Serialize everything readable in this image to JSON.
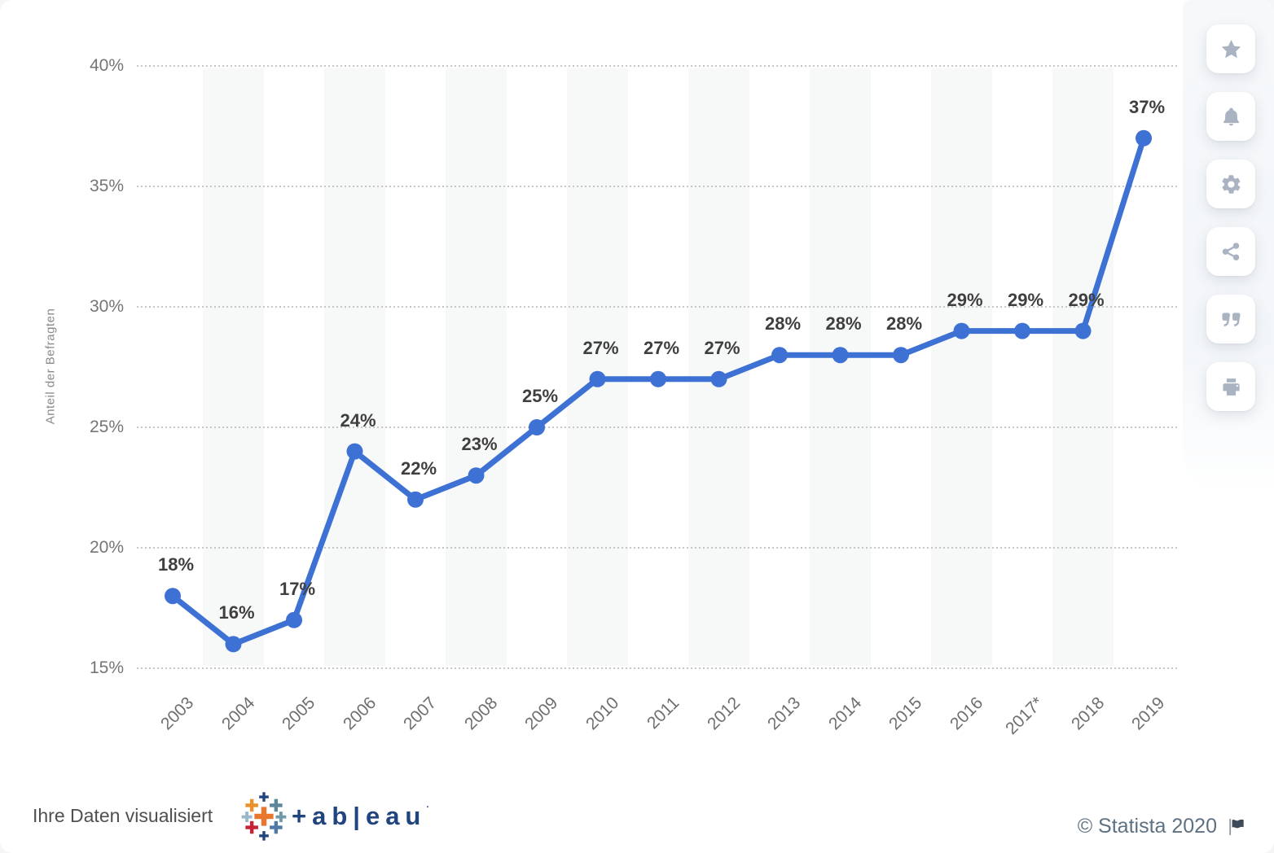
{
  "chart_data": {
    "type": "line",
    "categories": [
      "2003",
      "2004",
      "2005",
      "2006",
      "2007",
      "2008",
      "2009",
      "2010",
      "2011",
      "2012",
      "2013",
      "2014",
      "2015",
      "2016",
      "2017*",
      "2018",
      "2019"
    ],
    "values": [
      18,
      16,
      17,
      24,
      22,
      23,
      25,
      27,
      27,
      27,
      28,
      28,
      28,
      29,
      29,
      29,
      37
    ],
    "data_labels": [
      "18%",
      "16%",
      "17%",
      "24%",
      "22%",
      "23%",
      "25%",
      "27%",
      "27%",
      "27%",
      "28%",
      "28%",
      "28%",
      "29%",
      "29%",
      "29%",
      "37%"
    ],
    "title": "",
    "xlabel": "",
    "ylabel": "Anteil der Befragten",
    "ylim": [
      15,
      40
    ],
    "yticks": [
      15,
      20,
      25,
      30,
      35,
      40
    ],
    "ytick_labels": [
      "15%",
      "20%",
      "25%",
      "30%",
      "35%",
      "40%"
    ],
    "grid": "horizontal-dotted",
    "alternating_column_bands": true,
    "legend": "none",
    "line_color": "#3e71d4",
    "marker": "circle"
  },
  "colors": {
    "line": "#3e71d4",
    "band": "#f7f8f8",
    "grid_dots": "#c6c6c6",
    "data_label": "#3f3f3f",
    "axis_text": "#757575",
    "icon": "#a9b3c2",
    "tableau_navy": "#1f447e",
    "statista_text": "#5e7183"
  },
  "action_rail": {
    "buttons": [
      {
        "id": "favorite-button",
        "icon": "star-icon"
      },
      {
        "id": "notification-button",
        "icon": "bell-icon"
      },
      {
        "id": "settings-button",
        "icon": "gear-icon"
      },
      {
        "id": "share-button",
        "icon": "share-icon"
      },
      {
        "id": "cite-button",
        "icon": "quote-icon"
      },
      {
        "id": "print-button",
        "icon": "printer-icon"
      }
    ]
  },
  "footer": {
    "left_text": "Ihre Daten visualisiert",
    "tableau_logo_text": "+ab|eau",
    "copyright": "© Statista 2020",
    "flag_icon": "report-flag"
  }
}
